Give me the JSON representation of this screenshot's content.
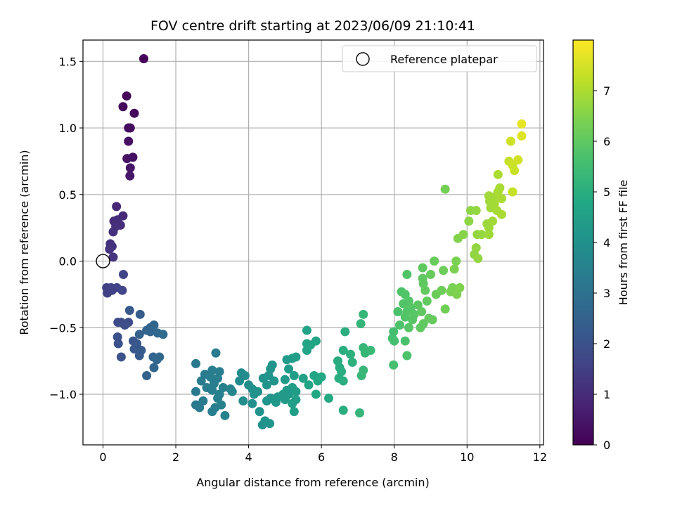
{
  "chart_data": {
    "type": "scatter",
    "title": "FOV centre drift starting at 2023/06/09 21:10:41",
    "xlabel": "Angular distance from reference (arcmin)",
    "ylabel": "Rotation from reference (arcmin)",
    "xlim": [
      -0.55,
      12.1
    ],
    "ylim": [
      -1.38,
      1.66
    ],
    "xticks": [
      0,
      2,
      4,
      6,
      8,
      10,
      12
    ],
    "yticks": [
      -1.0,
      -0.5,
      0.0,
      0.5,
      1.0,
      1.5
    ],
    "xtick_labels": [
      "0",
      "2",
      "4",
      "6",
      "8",
      "10",
      "12"
    ],
    "ytick_labels": [
      "−1.0",
      "−0.5",
      "0.0",
      "0.5",
      "1.0",
      "1.5"
    ],
    "grid": true,
    "legend": {
      "position": "top-right",
      "entries": [
        "Reference platepar"
      ]
    },
    "reference_point": {
      "x": 0.0,
      "y": 0.0
    },
    "colorbar": {
      "label": "Hours from first FF file",
      "range": [
        0,
        8
      ],
      "ticks": [
        0,
        1,
        2,
        3,
        4,
        5,
        6,
        7
      ],
      "colormap": "viridis"
    },
    "points": [
      {
        "x": 1.12,
        "y": 1.52,
        "h": 0.05
      },
      {
        "x": 0.65,
        "y": 1.24,
        "h": 0.1
      },
      {
        "x": 0.55,
        "y": 1.16,
        "h": 0.15
      },
      {
        "x": 0.86,
        "y": 1.11,
        "h": 0.2
      },
      {
        "x": 0.7,
        "y": 1.0,
        "h": 0.25
      },
      {
        "x": 0.75,
        "y": 1.0,
        "h": 0.28
      },
      {
        "x": 0.7,
        "y": 0.9,
        "h": 0.32
      },
      {
        "x": 0.82,
        "y": 0.78,
        "h": 0.36
      },
      {
        "x": 0.66,
        "y": 0.77,
        "h": 0.4
      },
      {
        "x": 0.75,
        "y": 0.7,
        "h": 0.45
      },
      {
        "x": 0.74,
        "y": 0.64,
        "h": 0.5
      },
      {
        "x": 0.37,
        "y": 0.41,
        "h": 0.9
      },
      {
        "x": 0.55,
        "y": 0.34,
        "h": 0.95
      },
      {
        "x": 0.3,
        "y": 0.3,
        "h": 1.0
      },
      {
        "x": 0.4,
        "y": 0.31,
        "h": 1.02
      },
      {
        "x": 0.48,
        "y": 0.27,
        "h": 1.05
      },
      {
        "x": 0.35,
        "y": 0.26,
        "h": 1.08
      },
      {
        "x": 0.28,
        "y": 0.22,
        "h": 1.1
      },
      {
        "x": 0.2,
        "y": 0.13,
        "h": 1.12
      },
      {
        "x": 0.25,
        "y": 0.11,
        "h": 1.15
      },
      {
        "x": 0.18,
        "y": 0.09,
        "h": 1.18
      },
      {
        "x": 0.28,
        "y": 0.03,
        "h": 1.2
      },
      {
        "x": 0.56,
        "y": -0.1,
        "h": 1.6
      },
      {
        "x": 0.1,
        "y": -0.2,
        "h": 1.5
      },
      {
        "x": 0.22,
        "y": -0.2,
        "h": 1.55
      },
      {
        "x": 0.38,
        "y": -0.2,
        "h": 1.6
      },
      {
        "x": 0.12,
        "y": -0.24,
        "h": 1.5
      },
      {
        "x": 0.25,
        "y": -0.22,
        "h": 1.55
      },
      {
        "x": 0.53,
        "y": -0.22,
        "h": 1.65
      },
      {
        "x": 0.73,
        "y": -0.37,
        "h": 2.2
      },
      {
        "x": 1.02,
        "y": -0.4,
        "h": 2.3
      },
      {
        "x": 0.41,
        "y": -0.46,
        "h": 1.8
      },
      {
        "x": 0.5,
        "y": -0.46,
        "h": 1.85
      },
      {
        "x": 0.7,
        "y": -0.46,
        "h": 1.9
      },
      {
        "x": 0.6,
        "y": -0.48,
        "h": 1.9
      },
      {
        "x": 1.3,
        "y": -0.5,
        "h": 2.6
      },
      {
        "x": 1.4,
        "y": -0.48,
        "h": 2.65
      },
      {
        "x": 1.2,
        "y": -0.52,
        "h": 2.55
      },
      {
        "x": 1.3,
        "y": -0.53,
        "h": 2.6
      },
      {
        "x": 1.0,
        "y": -0.55,
        "h": 2.5
      },
      {
        "x": 1.5,
        "y": -0.54,
        "h": 2.7
      },
      {
        "x": 1.65,
        "y": -0.55,
        "h": 2.8
      },
      {
        "x": 0.4,
        "y": -0.57,
        "h": 1.95
      },
      {
        "x": 0.83,
        "y": -0.6,
        "h": 2.1
      },
      {
        "x": 0.42,
        "y": -0.62,
        "h": 1.98
      },
      {
        "x": 0.93,
        "y": -0.62,
        "h": 2.15
      },
      {
        "x": 0.86,
        "y": -0.66,
        "h": 2.2
      },
      {
        "x": 1.05,
        "y": -0.67,
        "h": 2.25
      },
      {
        "x": 1.0,
        "y": -0.71,
        "h": 2.25
      },
      {
        "x": 0.5,
        "y": -0.72,
        "h": 2.0
      },
      {
        "x": 1.38,
        "y": -0.72,
        "h": 2.6
      },
      {
        "x": 1.55,
        "y": -0.72,
        "h": 2.7
      },
      {
        "x": 1.48,
        "y": -0.74,
        "h": 2.65
      },
      {
        "x": 1.4,
        "y": -0.8,
        "h": 2.6
      },
      {
        "x": 1.2,
        "y": -0.86,
        "h": 2.5
      },
      {
        "x": 2.55,
        "y": -0.77,
        "h": 3.2
      },
      {
        "x": 3.1,
        "y": -0.69,
        "h": 3.3
      },
      {
        "x": 2.8,
        "y": -0.85,
        "h": 3.3
      },
      {
        "x": 3.0,
        "y": -0.82,
        "h": 3.35
      },
      {
        "x": 3.2,
        "y": -0.83,
        "h": 3.4
      },
      {
        "x": 2.95,
        "y": -0.87,
        "h": 3.35
      },
      {
        "x": 3.15,
        "y": -0.88,
        "h": 3.4
      },
      {
        "x": 2.7,
        "y": -0.9,
        "h": 3.3
      },
      {
        "x": 3.05,
        "y": -0.92,
        "h": 3.4
      },
      {
        "x": 2.85,
        "y": -0.95,
        "h": 3.35
      },
      {
        "x": 3.0,
        "y": -0.97,
        "h": 3.4
      },
      {
        "x": 3.3,
        "y": -0.95,
        "h": 3.5
      },
      {
        "x": 3.5,
        "y": -0.96,
        "h": 3.55
      },
      {
        "x": 3.55,
        "y": -0.98,
        "h": 3.6
      },
      {
        "x": 2.55,
        "y": -0.98,
        "h": 3.2
      },
      {
        "x": 3.2,
        "y": -1.0,
        "h": 3.45
      },
      {
        "x": 2.75,
        "y": -1.05,
        "h": 3.3
      },
      {
        "x": 3.15,
        "y": -1.03,
        "h": 3.45
      },
      {
        "x": 3.25,
        "y": -1.08,
        "h": 3.5
      },
      {
        "x": 2.55,
        "y": -1.08,
        "h": 3.2
      },
      {
        "x": 2.65,
        "y": -1.1,
        "h": 3.25
      },
      {
        "x": 3.08,
        "y": -1.1,
        "h": 3.4
      },
      {
        "x": 3.0,
        "y": -1.13,
        "h": 3.4
      },
      {
        "x": 3.35,
        "y": -1.16,
        "h": 3.55
      },
      {
        "x": 3.8,
        "y": -0.84,
        "h": 3.8
      },
      {
        "x": 3.9,
        "y": -0.86,
        "h": 3.85
      },
      {
        "x": 3.75,
        "y": -0.9,
        "h": 3.8
      },
      {
        "x": 4.0,
        "y": -0.93,
        "h": 3.9
      },
      {
        "x": 4.1,
        "y": -0.96,
        "h": 3.95
      },
      {
        "x": 4.25,
        "y": -0.98,
        "h": 4.0
      },
      {
        "x": 4.15,
        "y": -1.0,
        "h": 4.0
      },
      {
        "x": 4.4,
        "y": -0.88,
        "h": 4.05
      },
      {
        "x": 4.55,
        "y": -0.86,
        "h": 4.1
      },
      {
        "x": 4.6,
        "y": -0.81,
        "h": 4.1
      },
      {
        "x": 4.65,
        "y": -0.78,
        "h": 4.15
      },
      {
        "x": 4.5,
        "y": -0.93,
        "h": 4.1
      },
      {
        "x": 4.7,
        "y": -0.9,
        "h": 4.15
      },
      {
        "x": 3.85,
        "y": -1.05,
        "h": 3.85
      },
      {
        "x": 4.1,
        "y": -1.07,
        "h": 3.95
      },
      {
        "x": 4.3,
        "y": -1.13,
        "h": 4.05
      },
      {
        "x": 4.5,
        "y": -1.05,
        "h": 4.1
      },
      {
        "x": 4.6,
        "y": -1.03,
        "h": 4.15
      },
      {
        "x": 4.8,
        "y": -1.02,
        "h": 4.2
      },
      {
        "x": 4.75,
        "y": -1.06,
        "h": 4.2
      },
      {
        "x": 4.45,
        "y": -1.2,
        "h": 4.1
      },
      {
        "x": 4.58,
        "y": -1.22,
        "h": 4.15
      },
      {
        "x": 4.38,
        "y": -1.23,
        "h": 4.05
      },
      {
        "x": 5.05,
        "y": -0.74,
        "h": 4.3
      },
      {
        "x": 5.2,
        "y": -0.73,
        "h": 4.35
      },
      {
        "x": 5.3,
        "y": -0.72,
        "h": 4.4
      },
      {
        "x": 5.1,
        "y": -0.81,
        "h": 4.35
      },
      {
        "x": 5.25,
        "y": -0.86,
        "h": 4.4
      },
      {
        "x": 5.0,
        "y": -0.89,
        "h": 4.3
      },
      {
        "x": 5.2,
        "y": -0.95,
        "h": 4.4
      },
      {
        "x": 5.05,
        "y": -0.97,
        "h": 4.35
      },
      {
        "x": 4.95,
        "y": -1.0,
        "h": 4.3
      },
      {
        "x": 5.1,
        "y": -1.0,
        "h": 4.35
      },
      {
        "x": 5.3,
        "y": -0.98,
        "h": 4.45
      },
      {
        "x": 5.0,
        "y": -1.04,
        "h": 4.3
      },
      {
        "x": 5.2,
        "y": -1.07,
        "h": 4.4
      },
      {
        "x": 5.3,
        "y": -1.04,
        "h": 4.45
      },
      {
        "x": 5.25,
        "y": -1.13,
        "h": 4.45
      },
      {
        "x": 5.6,
        "y": -0.52,
        "h": 4.6
      },
      {
        "x": 5.6,
        "y": -0.62,
        "h": 4.65
      },
      {
        "x": 5.7,
        "y": -0.63,
        "h": 4.65
      },
      {
        "x": 5.6,
        "y": -0.67,
        "h": 4.65
      },
      {
        "x": 5.85,
        "y": -0.6,
        "h": 4.7
      },
      {
        "x": 5.5,
        "y": -0.88,
        "h": 4.6
      },
      {
        "x": 5.65,
        "y": -0.93,
        "h": 4.65
      },
      {
        "x": 5.8,
        "y": -0.86,
        "h": 4.7
      },
      {
        "x": 5.9,
        "y": -0.9,
        "h": 4.75
      },
      {
        "x": 6.0,
        "y": -0.87,
        "h": 4.8
      },
      {
        "x": 5.85,
        "y": -1.0,
        "h": 4.75
      },
      {
        "x": 6.2,
        "y": -1.03,
        "h": 4.85
      },
      {
        "x": 6.65,
        "y": -0.53,
        "h": 5.0
      },
      {
        "x": 6.45,
        "y": -0.75,
        "h": 4.95
      },
      {
        "x": 6.6,
        "y": -0.67,
        "h": 5.0
      },
      {
        "x": 6.8,
        "y": -0.7,
        "h": 5.05
      },
      {
        "x": 6.5,
        "y": -0.8,
        "h": 4.95
      },
      {
        "x": 6.55,
        "y": -0.83,
        "h": 5.0
      },
      {
        "x": 6.85,
        "y": -0.76,
        "h": 5.05
      },
      {
        "x": 6.48,
        "y": -0.88,
        "h": 4.95
      },
      {
        "x": 6.6,
        "y": -0.9,
        "h": 5.0
      },
      {
        "x": 6.6,
        "y": -1.12,
        "h": 5.0
      },
      {
        "x": 7.15,
        "y": -0.4,
        "h": 5.3
      },
      {
        "x": 7.08,
        "y": -0.47,
        "h": 5.25
      },
      {
        "x": 7.15,
        "y": -0.65,
        "h": 5.3
      },
      {
        "x": 7.35,
        "y": -0.67,
        "h": 5.35
      },
      {
        "x": 7.2,
        "y": -0.69,
        "h": 5.3
      },
      {
        "x": 7.15,
        "y": -0.82,
        "h": 5.3
      },
      {
        "x": 7.1,
        "y": -0.86,
        "h": 5.3
      },
      {
        "x": 7.05,
        "y": -1.14,
        "h": 5.25
      },
      {
        "x": 7.98,
        "y": -0.53,
        "h": 5.6
      },
      {
        "x": 7.95,
        "y": -0.58,
        "h": 5.6
      },
      {
        "x": 8.0,
        "y": -0.6,
        "h": 5.62
      },
      {
        "x": 7.98,
        "y": -0.78,
        "h": 5.6
      },
      {
        "x": 8.3,
        "y": -0.6,
        "h": 5.7
      },
      {
        "x": 8.35,
        "y": -0.71,
        "h": 5.72
      },
      {
        "x": 8.1,
        "y": -0.38,
        "h": 5.7
      },
      {
        "x": 8.15,
        "y": -0.48,
        "h": 5.72
      },
      {
        "x": 8.2,
        "y": -0.23,
        "h": 5.75
      },
      {
        "x": 8.35,
        "y": -0.1,
        "h": 5.8
      },
      {
        "x": 8.3,
        "y": -0.25,
        "h": 5.8
      },
      {
        "x": 8.4,
        "y": -0.3,
        "h": 5.82
      },
      {
        "x": 8.25,
        "y": -0.32,
        "h": 5.8
      },
      {
        "x": 8.45,
        "y": -0.35,
        "h": 5.85
      },
      {
        "x": 8.35,
        "y": -0.38,
        "h": 5.82
      },
      {
        "x": 8.55,
        "y": -0.4,
        "h": 5.9
      },
      {
        "x": 8.3,
        "y": -0.42,
        "h": 5.8
      },
      {
        "x": 8.5,
        "y": -0.44,
        "h": 5.88
      },
      {
        "x": 8.65,
        "y": -0.33,
        "h": 5.95
      },
      {
        "x": 8.75,
        "y": -0.38,
        "h": 6.0
      },
      {
        "x": 8.78,
        "y": -0.05,
        "h": 6.0
      },
      {
        "x": 8.78,
        "y": -0.13,
        "h": 6.0
      },
      {
        "x": 8.8,
        "y": -0.17,
        "h": 6.02
      },
      {
        "x": 8.85,
        "y": -0.22,
        "h": 6.05
      },
      {
        "x": 8.9,
        "y": -0.3,
        "h": 6.05
      },
      {
        "x": 8.95,
        "y": -0.43,
        "h": 6.08
      },
      {
        "x": 8.8,
        "y": -0.47,
        "h": 6.02
      },
      {
        "x": 8.72,
        "y": -0.5,
        "h": 6.0
      },
      {
        "x": 9.05,
        "y": -0.44,
        "h": 6.1
      },
      {
        "x": 8.4,
        "y": -0.5,
        "h": 5.85
      },
      {
        "x": 9.1,
        "y": 0.0,
        "h": 6.15
      },
      {
        "x": 9.0,
        "y": -0.1,
        "h": 6.1
      },
      {
        "x": 9.35,
        "y": -0.07,
        "h": 6.2
      },
      {
        "x": 9.3,
        "y": -0.22,
        "h": 6.2
      },
      {
        "x": 9.15,
        "y": -0.25,
        "h": 6.18
      },
      {
        "x": 9.4,
        "y": -0.36,
        "h": 6.25
      },
      {
        "x": 9.4,
        "y": 0.54,
        "h": 6.3
      },
      {
        "x": 9.7,
        "y": 0.0,
        "h": 6.4
      },
      {
        "x": 9.65,
        "y": -0.06,
        "h": 6.4
      },
      {
        "x": 9.6,
        "y": -0.2,
        "h": 6.38
      },
      {
        "x": 9.55,
        "y": -0.23,
        "h": 6.38
      },
      {
        "x": 9.72,
        "y": -0.25,
        "h": 6.42
      },
      {
        "x": 9.8,
        "y": -0.2,
        "h": 6.45
      },
      {
        "x": 9.75,
        "y": 0.17,
        "h": 6.5
      },
      {
        "x": 9.9,
        "y": 0.2,
        "h": 6.55
      },
      {
        "x": 10.05,
        "y": 0.3,
        "h": 6.6
      },
      {
        "x": 10.1,
        "y": 0.38,
        "h": 6.62
      },
      {
        "x": 10.2,
        "y": 0.05,
        "h": 6.65
      },
      {
        "x": 10.25,
        "y": 0.1,
        "h": 6.68
      },
      {
        "x": 10.3,
        "y": 0.02,
        "h": 6.7
      },
      {
        "x": 10.28,
        "y": 0.2,
        "h": 6.7
      },
      {
        "x": 10.4,
        "y": 0.2,
        "h": 6.72
      },
      {
        "x": 10.25,
        "y": 0.38,
        "h": 6.7
      },
      {
        "x": 10.55,
        "y": 0.28,
        "h": 6.8
      },
      {
        "x": 10.6,
        "y": 0.25,
        "h": 6.82
      },
      {
        "x": 10.7,
        "y": 0.3,
        "h": 6.85
      },
      {
        "x": 10.65,
        "y": 0.4,
        "h": 6.85
      },
      {
        "x": 10.62,
        "y": 0.45,
        "h": 6.85
      },
      {
        "x": 10.6,
        "y": 0.49,
        "h": 6.85
      },
      {
        "x": 10.75,
        "y": 0.43,
        "h": 6.9
      },
      {
        "x": 10.82,
        "y": 0.38,
        "h": 6.92
      },
      {
        "x": 10.72,
        "y": 0.48,
        "h": 6.9
      },
      {
        "x": 10.85,
        "y": 0.52,
        "h": 6.95
      },
      {
        "x": 10.9,
        "y": 0.55,
        "h": 6.95
      },
      {
        "x": 10.95,
        "y": 0.47,
        "h": 6.98
      },
      {
        "x": 10.95,
        "y": 0.35,
        "h": 6.98
      },
      {
        "x": 10.85,
        "y": 0.65,
        "h": 7.0
      },
      {
        "x": 10.6,
        "y": 0.2,
        "h": 6.82
      },
      {
        "x": 11.15,
        "y": 0.75,
        "h": 7.3
      },
      {
        "x": 11.25,
        "y": 0.72,
        "h": 7.35
      },
      {
        "x": 11.3,
        "y": 0.68,
        "h": 7.35
      },
      {
        "x": 11.4,
        "y": 0.76,
        "h": 7.45
      },
      {
        "x": 11.2,
        "y": 0.9,
        "h": 7.4
      },
      {
        "x": 11.5,
        "y": 0.94,
        "h": 7.6
      },
      {
        "x": 11.5,
        "y": 1.03,
        "h": 7.7
      },
      {
        "x": 11.25,
        "y": 0.52,
        "h": 7.3
      }
    ]
  }
}
